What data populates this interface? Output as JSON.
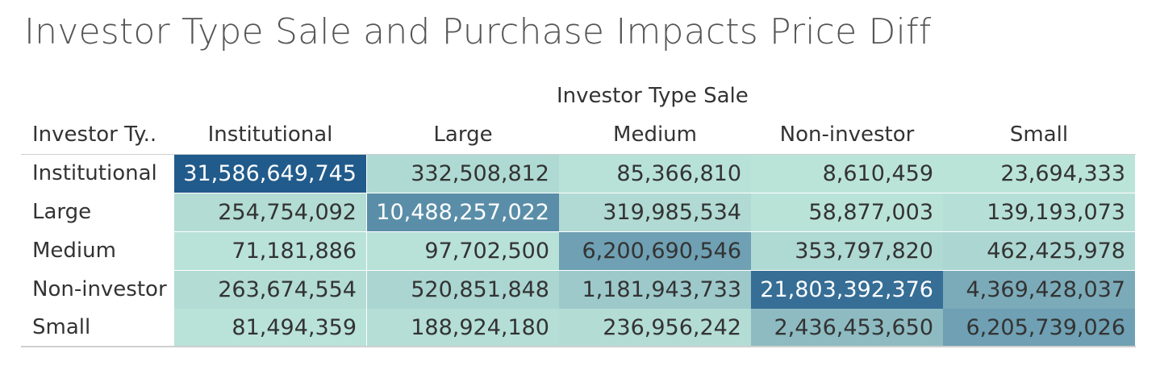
{
  "chart_data": {
    "type": "heatmap",
    "title": "Investor Type Sale and Purchase Impacts Price Diff",
    "column_group_label": "Investor Type Sale",
    "row_header_label": "Investor Ty..",
    "columns": [
      "Institutional",
      "Large",
      "Medium",
      "Non-investor",
      "Small"
    ],
    "rows": [
      "Institutional",
      "Large",
      "Medium",
      "Non-investor",
      "Small"
    ],
    "values": [
      [
        31586649745,
        332508812,
        85366810,
        8610459,
        23694333
      ],
      [
        254754092,
        10488257022,
        319985534,
        58877003,
        139193073
      ],
      [
        71181886,
        97702500,
        6200690546,
        353797820,
        462425978
      ],
      [
        263674554,
        520851848,
        1181943733,
        21803392376,
        4369428037
      ],
      [
        81494359,
        188924180,
        236956242,
        2436453650,
        6205739026
      ]
    ],
    "value_labels": [
      [
        "31,586,649,745",
        "332,508,812",
        "85,366,810",
        "8,610,459",
        "23,694,333"
      ],
      [
        "254,754,092",
        "10,488,257,022",
        "319,985,534",
        "58,877,003",
        "139,193,073"
      ],
      [
        "71,181,886",
        "97,702,500",
        "6,200,690,546",
        "353,797,820",
        "462,425,978"
      ],
      [
        "263,674,554",
        "520,851,848",
        "1,181,943,733",
        "21,803,392,376",
        "4,369,428,037"
      ],
      [
        "81,494,359",
        "188,924,180",
        "236,956,242",
        "2,436,453,650",
        "6,205,739,026"
      ]
    ],
    "color_scale": {
      "low": "#bbe4d9",
      "high": "#215b8b",
      "min": 8610459,
      "max": 31586649745
    }
  }
}
